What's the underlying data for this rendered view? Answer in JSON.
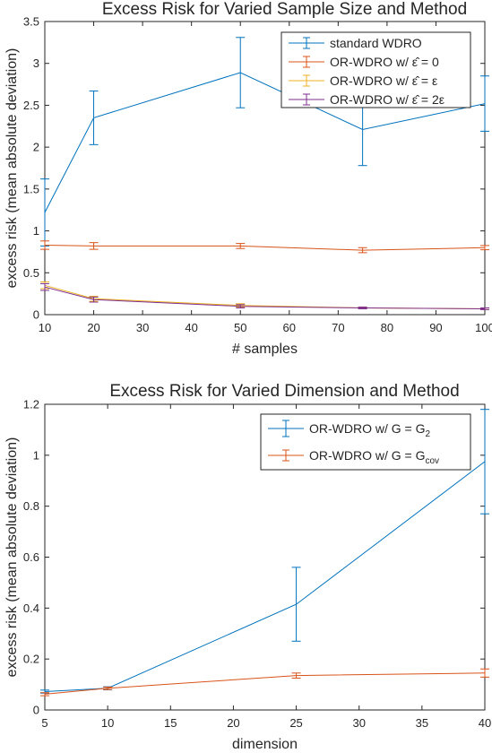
{
  "chart_data": [
    {
      "type": "line",
      "title": "Excess Risk for Varied Sample Size and Method",
      "xlabel": "# samples",
      "ylabel": "excess risk (mean absolute deviation)",
      "xlim": [
        10,
        100
      ],
      "ylim": [
        0,
        3.5
      ],
      "xticks": [
        "10",
        "20",
        "30",
        "40",
        "50",
        "60",
        "70",
        "80",
        "90",
        "100"
      ],
      "yticks": [
        "0",
        "0.5",
        "1",
        "1.5",
        "2",
        "2.5",
        "3",
        "3.5"
      ],
      "legend_position": "top-right",
      "error_bars": true,
      "x": [
        10,
        20,
        50,
        75,
        100
      ],
      "series": [
        {
          "name": "standard WDRO",
          "color": "#0072BD",
          "values": [
            1.22,
            2.35,
            2.89,
            2.21,
            2.52
          ],
          "err": [
            0.4,
            0.32,
            0.42,
            0.43,
            0.33
          ]
        },
        {
          "name": "OR-WDRO w/ ε̂ = 0",
          "color": "#D95319",
          "values": [
            0.83,
            0.82,
            0.82,
            0.77,
            0.8
          ],
          "err": [
            0.05,
            0.04,
            0.03,
            0.03,
            0.025
          ]
        },
        {
          "name": "OR-WDRO w/ ε̂ = ε",
          "color": "#EDB120",
          "values": [
            0.35,
            0.19,
            0.11,
            0.08,
            0.07
          ],
          "err": [
            0.04,
            0.03,
            0.02,
            0.01,
            0.01
          ]
        },
        {
          "name": "OR-WDRO w/ ε̂ = 2ε",
          "color": "#7E2F8E",
          "values": [
            0.33,
            0.18,
            0.1,
            0.08,
            0.07
          ],
          "err": [
            0.04,
            0.03,
            0.02,
            0.01,
            0.01
          ]
        }
      ]
    },
    {
      "type": "line",
      "title": "Excess Risk for Varied Dimension and Method",
      "xlabel": "dimension",
      "ylabel": "excess risk (mean absolute deviation)",
      "xlim": [
        5,
        40
      ],
      "ylim": [
        0,
        1.2
      ],
      "xticks": [
        "5",
        "10",
        "15",
        "20",
        "25",
        "30",
        "35",
        "40"
      ],
      "yticks": [
        "0",
        "0.2",
        "0.4",
        "0.6",
        "0.8",
        "1",
        "1.2"
      ],
      "legend_position": "top-right",
      "error_bars": true,
      "x": [
        5,
        10,
        25,
        40
      ],
      "series": [
        {
          "name": "OR-WDRO w/ G = G",
          "subscript": "2",
          "color": "#0072BD",
          "values": [
            0.072,
            0.085,
            0.415,
            0.975
          ],
          "err": [
            0.006,
            0.006,
            0.145,
            0.205
          ]
        },
        {
          "name": "OR-WDRO w/ G = G",
          "subscript": "cov",
          "color": "#D95319",
          "values": [
            0.062,
            0.085,
            0.135,
            0.145
          ],
          "err": [
            0.006,
            0.005,
            0.01,
            0.016
          ]
        }
      ]
    }
  ]
}
